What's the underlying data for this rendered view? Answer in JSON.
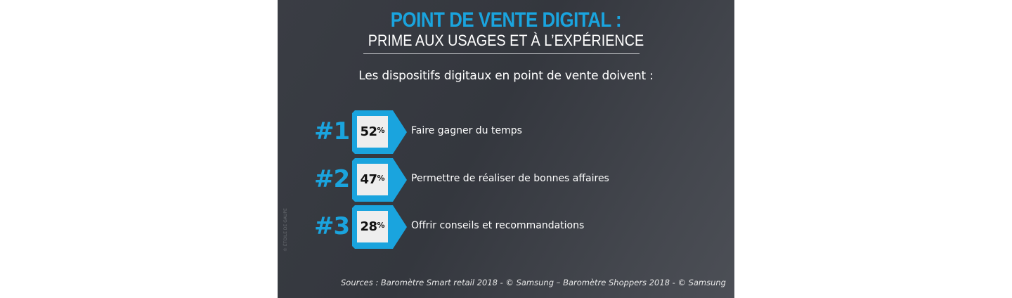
{
  "header": {
    "title": "POINT DE VENTE DIGITAL :",
    "subtitle": "PRIME AUX USAGES ET À L’EXPÉRIENCE"
  },
  "intro": "Les dispositifs digitaux en point de vente doivent :",
  "ranking": [
    {
      "rank": "#1",
      "value": "52",
      "unit": "%",
      "label": "Faire gagner du temps"
    },
    {
      "rank": "#2",
      "value": "47",
      "unit": "%",
      "label": "Permettre de réaliser de bonnes affaires"
    },
    {
      "rank": "#3",
      "value": "28",
      "unit": "%",
      "label": "Offrir conseils et recommandations"
    }
  ],
  "sources": "Sources : Baromètre Smart retail 2018 - © Samsung – Baromètre Shoppers 2018 - © Samsung",
  "credit": "© ÉTOILE DE GAUPE",
  "colors": {
    "accent": "#1aa4de",
    "background": "#3a3d44",
    "badge_fill": "#eeeeee",
    "text": "#ffffff"
  }
}
